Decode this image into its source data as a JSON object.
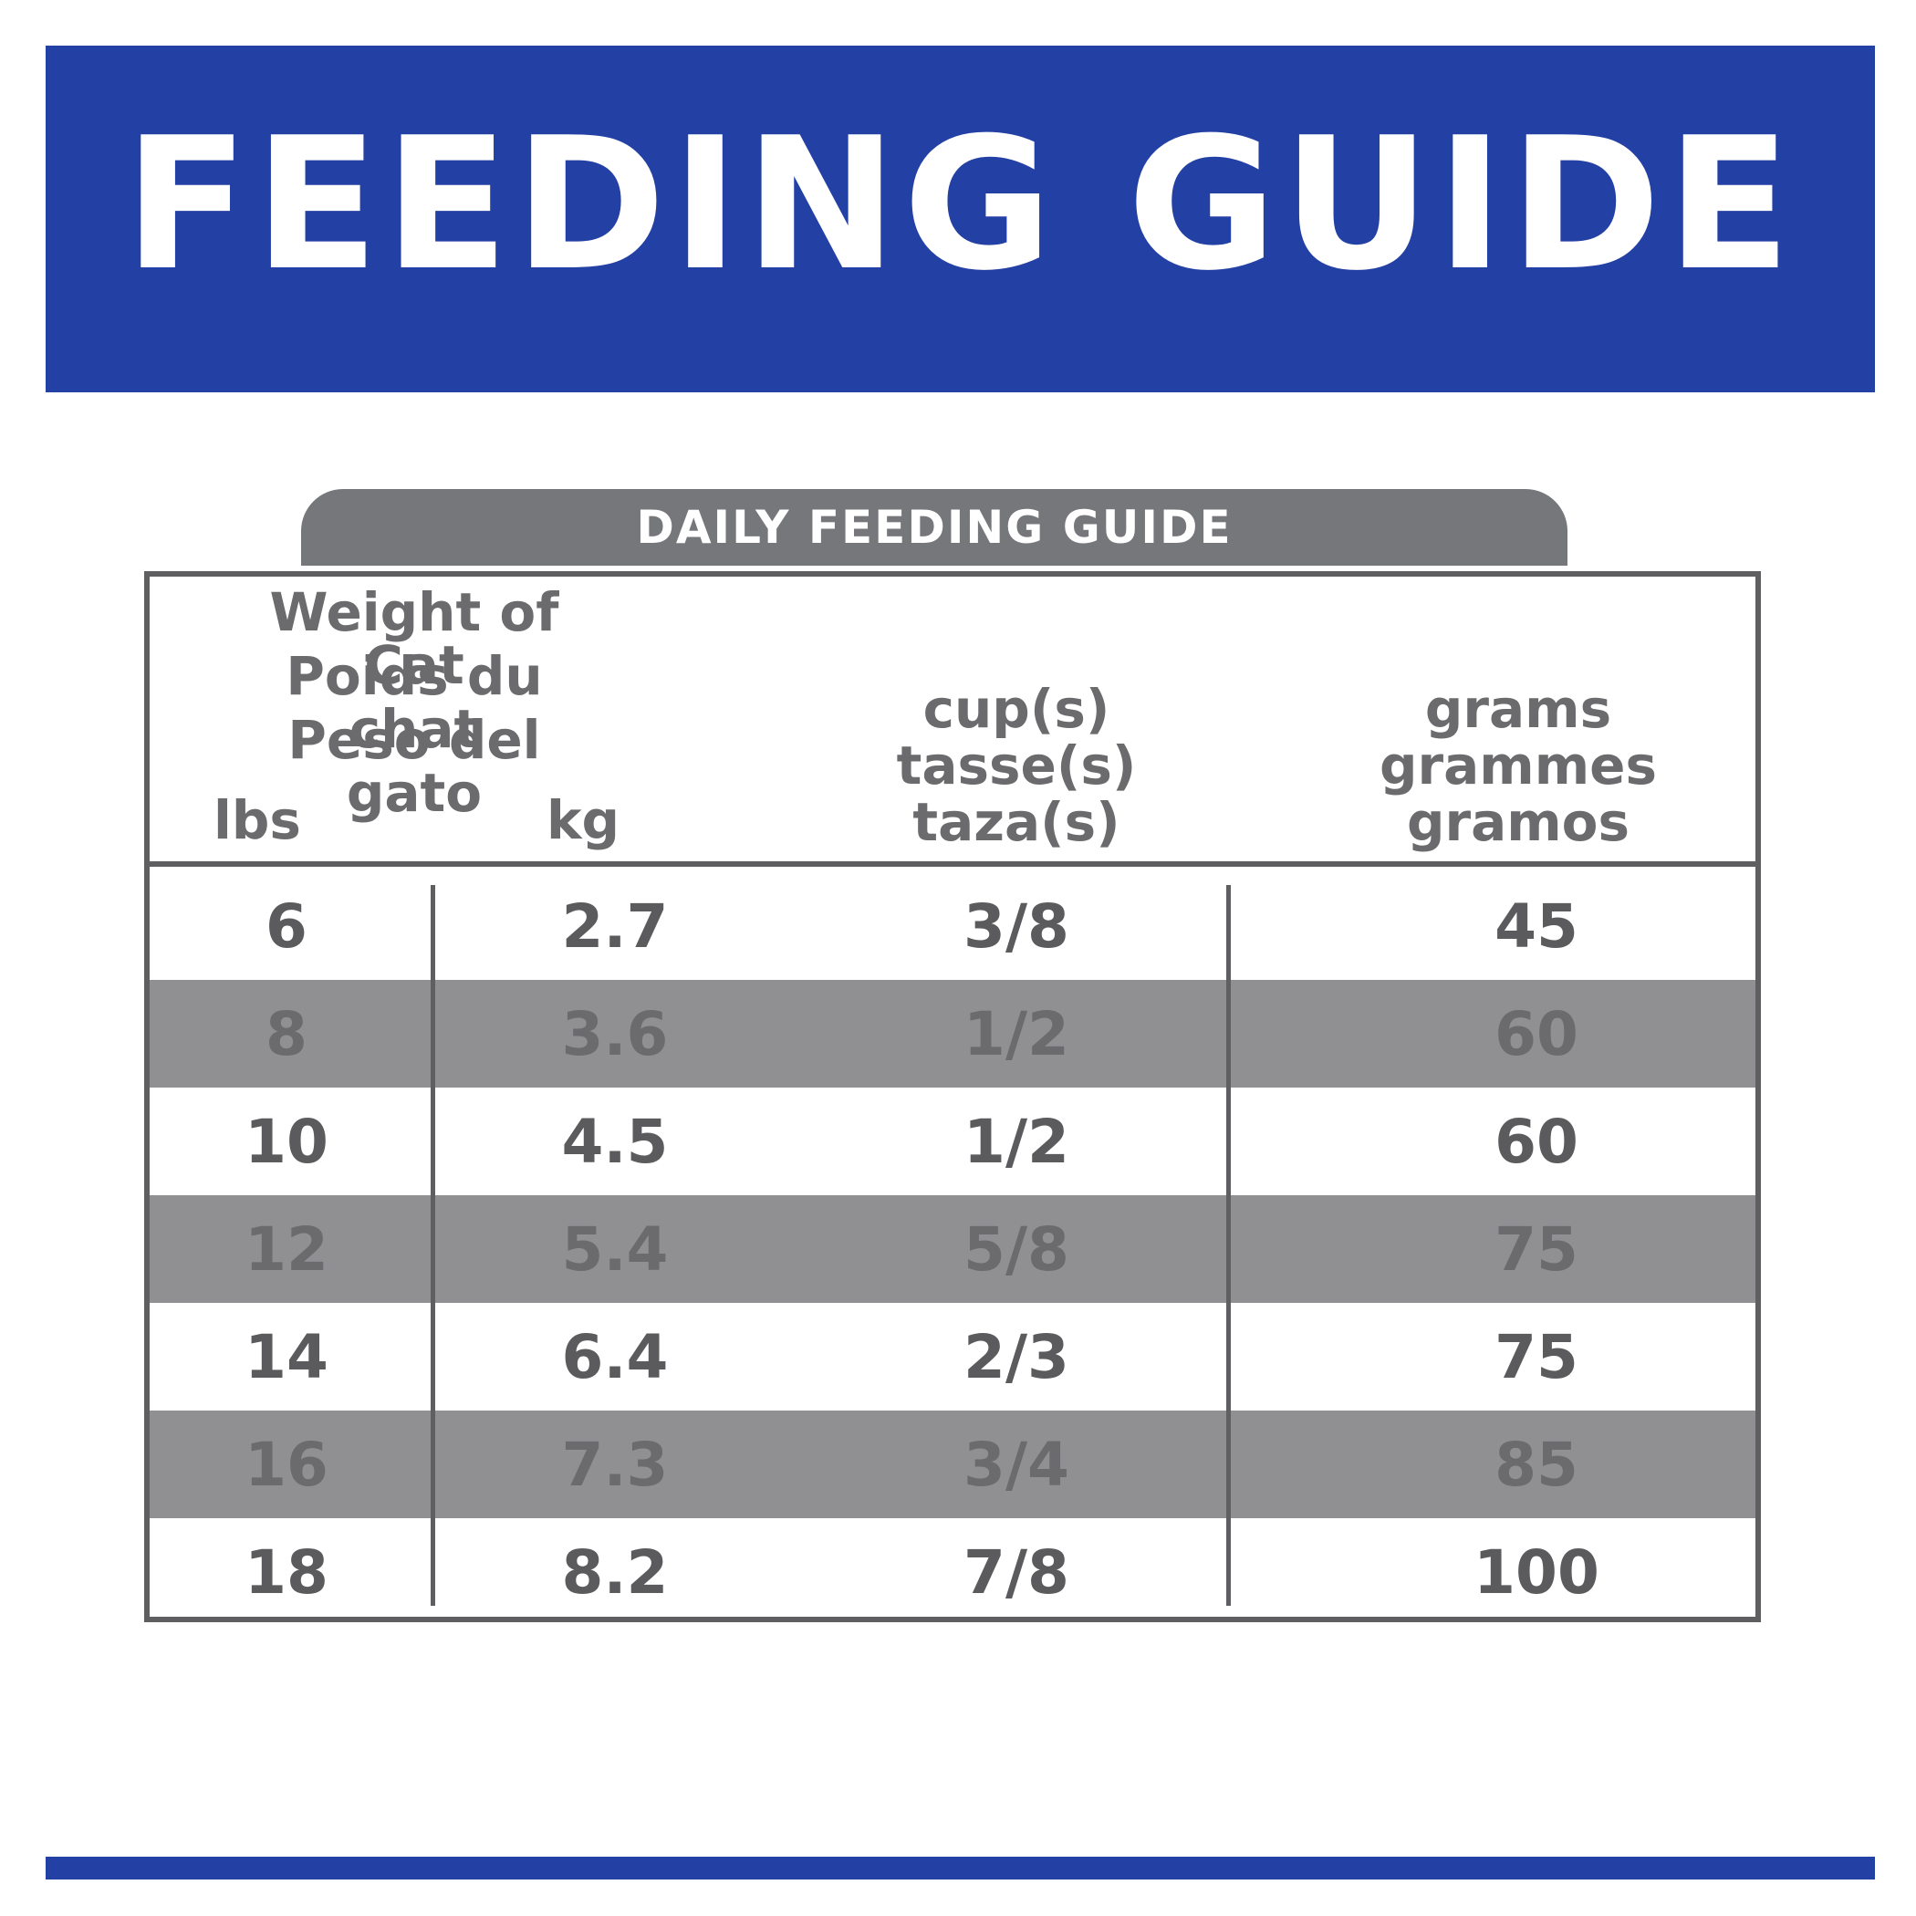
{
  "banner": {
    "title": "FEEDING GUIDE"
  },
  "tab": {
    "label": "DAILY FEEDING GUIDE"
  },
  "table": {
    "header": {
      "weight_lines": [
        "Weight of Cat",
        "Poids du chat",
        "Peso del gato"
      ],
      "lbs": "lbs",
      "kg": "kg",
      "cups_lines": [
        "cup(s)",
        "tasse(s)",
        "taza(s)"
      ],
      "grams_lines": [
        "grams",
        "grammes",
        "gramos"
      ]
    },
    "rows": [
      {
        "lbs": "6",
        "kg": "2.7",
        "cups": "3/8",
        "grams": "45"
      },
      {
        "lbs": "8",
        "kg": "3.6",
        "cups": "1/2",
        "grams": "60"
      },
      {
        "lbs": "10",
        "kg": "4.5",
        "cups": "1/2",
        "grams": "60"
      },
      {
        "lbs": "12",
        "kg": "5.4",
        "cups": "5/8",
        "grams": "75"
      },
      {
        "lbs": "14",
        "kg": "6.4",
        "cups": "2/3",
        "grams": "75"
      },
      {
        "lbs": "16",
        "kg": "7.3",
        "cups": "3/4",
        "grams": "85"
      },
      {
        "lbs": "18",
        "kg": "8.2",
        "cups": "7/8",
        "grams": "100"
      }
    ]
  },
  "colors": {
    "brand_blue": "#2340a5",
    "tab_gray": "#76777b",
    "row_shade": "#909093",
    "text_gray": "#5b5b5e"
  }
}
